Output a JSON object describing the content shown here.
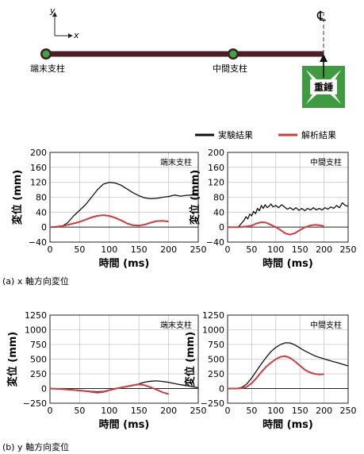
{
  "schematic": {
    "axis_y": "y",
    "axis_x": "x",
    "centerline": "℄",
    "end_column": "端末支柱",
    "middle_column": "中間支柱",
    "weight": "重錘",
    "colors": {
      "beam": "#4a1e22",
      "node_outer": "#3f1e1e",
      "node_inner": "#3aa54a",
      "weight": "#3f9b3f"
    }
  },
  "legend": {
    "experiment": "実験結果",
    "analysis": "解析結果",
    "colors": {
      "experiment": "#111111",
      "analysis": "#d23b3b"
    }
  },
  "captions": {
    "a": "(a) x 軸方向変位",
    "b": "(b) y 軸方向変位"
  },
  "chart_data": [
    {
      "type": "line",
      "panel": "端末支柱",
      "ylabel": "変位 (mm)",
      "xlabel": "時間 (ms)",
      "xlim": [
        0,
        250
      ],
      "ylim": [
        -40,
        200
      ],
      "xticks": [
        0,
        50,
        100,
        150,
        200,
        250
      ],
      "yticks": [
        -40,
        0,
        40,
        80,
        120,
        160,
        200
      ],
      "ytick_labels": [
        "−40",
        "0",
        "40",
        "80",
        "120",
        "160",
        "200"
      ],
      "grid": true,
      "series": [
        {
          "name": "実験結果",
          "points": [
            [
              0,
              0
            ],
            [
              10,
              0
            ],
            [
              20,
              2
            ],
            [
              30,
              12
            ],
            [
              40,
              30
            ],
            [
              50,
              45
            ],
            [
              60,
              60
            ],
            [
              70,
              80
            ],
            [
              80,
              100
            ],
            [
              90,
              115
            ],
            [
              100,
              120
            ],
            [
              110,
              118
            ],
            [
              120,
              112
            ],
            [
              130,
              102
            ],
            [
              140,
              92
            ],
            [
              150,
              84
            ],
            [
              160,
              78
            ],
            [
              170,
              76
            ],
            [
              180,
              77
            ],
            [
              190,
              80
            ],
            [
              200,
              82
            ],
            [
              210,
              86
            ],
            [
              220,
              83
            ],
            [
              230,
              85
            ],
            [
              240,
              86
            ],
            [
              250,
              85
            ]
          ]
        },
        {
          "name": "解析結果",
          "points": [
            [
              0,
              0
            ],
            [
              10,
              1
            ],
            [
              20,
              3
            ],
            [
              30,
              6
            ],
            [
              40,
              10
            ],
            [
              50,
              14
            ],
            [
              60,
              20
            ],
            [
              70,
              26
            ],
            [
              80,
              30
            ],
            [
              90,
              32
            ],
            [
              100,
              30
            ],
            [
              110,
              25
            ],
            [
              120,
              18
            ],
            [
              130,
              10
            ],
            [
              140,
              5
            ],
            [
              150,
              4
            ],
            [
              160,
              7
            ],
            [
              170,
              12
            ],
            [
              180,
              16
            ],
            [
              190,
              17
            ],
            [
              200,
              15
            ]
          ]
        }
      ]
    },
    {
      "type": "line",
      "panel": "中間支柱",
      "ylabel": "変位 (mm)",
      "xlabel": "時間 (ms)",
      "xlim": [
        0,
        250
      ],
      "ylim": [
        -40,
        200
      ],
      "xticks": [
        0,
        50,
        100,
        150,
        200,
        250
      ],
      "yticks": [
        -40,
        0,
        40,
        80,
        120,
        160,
        200
      ],
      "ytick_labels": [
        "−40",
        "0",
        "40",
        "80",
        "120",
        "160",
        "200"
      ],
      "grid": true,
      "series": [
        {
          "name": "実験結果",
          "points": [
            [
              0,
              0
            ],
            [
              22,
              0
            ],
            [
              26,
              6
            ],
            [
              30,
              12
            ],
            [
              34,
              18
            ],
            [
              38,
              28
            ],
            [
              42,
              22
            ],
            [
              46,
              35
            ],
            [
              50,
              30
            ],
            [
              54,
              42
            ],
            [
              58,
              36
            ],
            [
              62,
              50
            ],
            [
              66,
              44
            ],
            [
              70,
              58
            ],
            [
              74,
              50
            ],
            [
              78,
              60
            ],
            [
              82,
              52
            ],
            [
              86,
              56
            ],
            [
              90,
              62
            ],
            [
              94,
              54
            ],
            [
              100,
              58
            ],
            [
              106,
              52
            ],
            [
              112,
              60
            ],
            [
              118,
              54
            ],
            [
              124,
              48
            ],
            [
              130,
              52
            ],
            [
              136,
              46
            ],
            [
              142,
              52
            ],
            [
              148,
              45
            ],
            [
              154,
              50
            ],
            [
              160,
              44
            ],
            [
              166,
              50
            ],
            [
              172,
              46
            ],
            [
              178,
              52
            ],
            [
              184,
              46
            ],
            [
              190,
              50
            ],
            [
              196,
              46
            ],
            [
              202,
              52
            ],
            [
              208,
              48
            ],
            [
              214,
              54
            ],
            [
              220,
              50
            ],
            [
              226,
              58
            ],
            [
              232,
              52
            ],
            [
              238,
              65
            ],
            [
              244,
              58
            ],
            [
              250,
              56
            ]
          ]
        },
        {
          "name": "解析結果",
          "points": [
            [
              0,
              0
            ],
            [
              20,
              0
            ],
            [
              30,
              1
            ],
            [
              40,
              2
            ],
            [
              50,
              4
            ],
            [
              60,
              10
            ],
            [
              70,
              13
            ],
            [
              80,
              12
            ],
            [
              90,
              6
            ],
            [
              100,
              0
            ],
            [
              110,
              -8
            ],
            [
              120,
              -17
            ],
            [
              130,
              -20
            ],
            [
              140,
              -16
            ],
            [
              150,
              -8
            ],
            [
              160,
              -1
            ],
            [
              170,
              4
            ],
            [
              180,
              6
            ],
            [
              190,
              5
            ],
            [
              200,
              3
            ]
          ]
        }
      ]
    },
    {
      "type": "line",
      "panel": "端末支柱",
      "ylabel": "変位 (mm)",
      "xlabel": "時間 (ms)",
      "xlim": [
        0,
        250
      ],
      "ylim": [
        -250,
        1250
      ],
      "xticks": [
        0,
        50,
        100,
        150,
        200,
        250
      ],
      "yticks": [
        -250,
        0,
        250,
        500,
        750,
        1000,
        1250
      ],
      "ytick_labels": [
        "−250",
        "0",
        "250",
        "500",
        "750",
        "1000",
        "1250"
      ],
      "grid": true,
      "series": [
        {
          "name": "実験結果",
          "points": [
            [
              0,
              0
            ],
            [
              20,
              -5
            ],
            [
              40,
              -20
            ],
            [
              60,
              -40
            ],
            [
              80,
              -55
            ],
            [
              90,
              -50
            ],
            [
              100,
              -25
            ],
            [
              110,
              0
            ],
            [
              120,
              20
            ],
            [
              130,
              30
            ],
            [
              140,
              50
            ],
            [
              150,
              80
            ],
            [
              160,
              110
            ],
            [
              170,
              125
            ],
            [
              180,
              130
            ],
            [
              190,
              120
            ],
            [
              200,
              105
            ],
            [
              210,
              85
            ],
            [
              220,
              65
            ],
            [
              230,
              50
            ],
            [
              240,
              30
            ],
            [
              250,
              15
            ]
          ]
        },
        {
          "name": "解析結果",
          "points": [
            [
              0,
              0
            ],
            [
              20,
              -10
            ],
            [
              40,
              -25
            ],
            [
              60,
              -45
            ],
            [
              80,
              -70
            ],
            [
              90,
              -60
            ],
            [
              100,
              -30
            ],
            [
              110,
              -5
            ],
            [
              120,
              15
            ],
            [
              130,
              35
            ],
            [
              140,
              55
            ],
            [
              150,
              70
            ],
            [
              160,
              55
            ],
            [
              170,
              20
            ],
            [
              180,
              -20
            ],
            [
              190,
              -65
            ],
            [
              200,
              -95
            ]
          ]
        }
      ]
    },
    {
      "type": "line",
      "panel": "中間支柱",
      "ylabel": "変位 (mm)",
      "xlabel": "時間 (ms)",
      "xlim": [
        0,
        250
      ],
      "ylim": [
        -250,
        1250
      ],
      "xticks": [
        0,
        50,
        100,
        150,
        200,
        250
      ],
      "yticks": [
        -250,
        0,
        250,
        500,
        750,
        1000,
        1250
      ],
      "ytick_labels": [
        "−250",
        "0",
        "250",
        "500",
        "750",
        "1000",
        "1250"
      ],
      "grid": true,
      "series": [
        {
          "name": "実験結果",
          "points": [
            [
              0,
              0
            ],
            [
              10,
              0
            ],
            [
              20,
              2
            ],
            [
              30,
              20
            ],
            [
              40,
              80
            ],
            [
              50,
              180
            ],
            [
              60,
              300
            ],
            [
              70,
              420
            ],
            [
              80,
              530
            ],
            [
              90,
              630
            ],
            [
              100,
              700
            ],
            [
              110,
              750
            ],
            [
              120,
              780
            ],
            [
              130,
              775
            ],
            [
              140,
              740
            ],
            [
              150,
              690
            ],
            [
              160,
              640
            ],
            [
              170,
              600
            ],
            [
              180,
              560
            ],
            [
              190,
              530
            ],
            [
              200,
              505
            ],
            [
              210,
              480
            ],
            [
              220,
              455
            ],
            [
              230,
              435
            ],
            [
              240,
              410
            ],
            [
              250,
              385
            ]
          ]
        },
        {
          "name": "解析結果",
          "points": [
            [
              0,
              0
            ],
            [
              10,
              0
            ],
            [
              20,
              0
            ],
            [
              30,
              5
            ],
            [
              40,
              30
            ],
            [
              50,
              90
            ],
            [
              60,
              180
            ],
            [
              70,
              280
            ],
            [
              80,
              370
            ],
            [
              90,
              440
            ],
            [
              100,
              500
            ],
            [
              110,
              540
            ],
            [
              120,
              550
            ],
            [
              130,
              520
            ],
            [
              140,
              460
            ],
            [
              150,
              390
            ],
            [
              160,
              320
            ],
            [
              170,
              275
            ],
            [
              180,
              250
            ],
            [
              190,
              240
            ],
            [
              200,
              245
            ]
          ]
        }
      ]
    }
  ]
}
